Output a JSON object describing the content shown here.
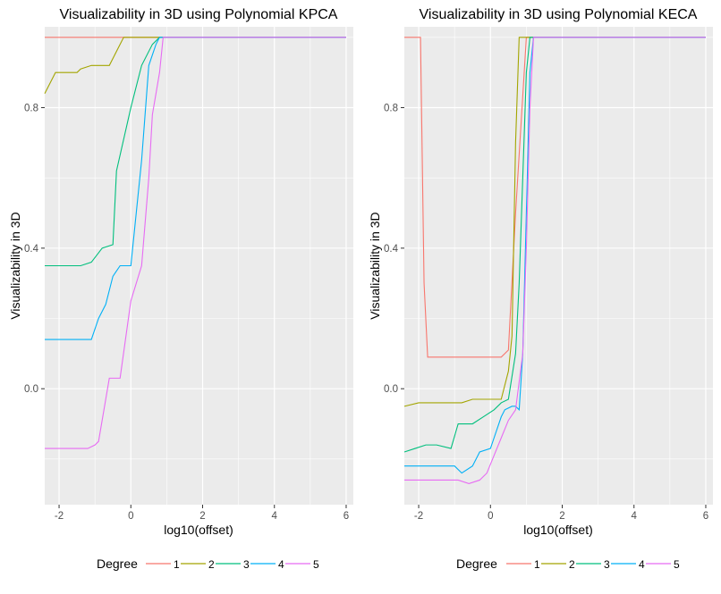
{
  "chart_data": [
    {
      "type": "line",
      "title": "Visualizability in 3D using Polynomial KPCA",
      "xlabel": "log10(offset)",
      "ylabel": "Visualizability in 3D",
      "xlim": [
        -2.4,
        6.2
      ],
      "ylim": [
        -0.33,
        1.03
      ],
      "xticks": [
        -2,
        0,
        2,
        4,
        6
      ],
      "yticks": [
        0.0,
        0.4,
        0.8
      ],
      "ytick_labels": [
        "0.0",
        "0.4",
        "0.8"
      ],
      "grid": true,
      "series": [
        {
          "name": "1",
          "color": "#F8766D",
          "x": [
            -2.4,
            6.0
          ],
          "y": [
            1.0,
            1.0
          ]
        },
        {
          "name": "2",
          "color": "#A3A500",
          "x": [
            -2.4,
            -2.1,
            -1.5,
            -1.4,
            -1.1,
            -0.6,
            -0.3,
            -0.2,
            0.4,
            6.0
          ],
          "y": [
            0.84,
            0.9,
            0.9,
            0.91,
            0.92,
            0.92,
            0.98,
            1.0,
            1.0,
            1.0
          ]
        },
        {
          "name": "3",
          "color": "#00BF7D",
          "x": [
            -2.4,
            -1.4,
            -1.1,
            -0.8,
            -0.5,
            -0.4,
            0.0,
            0.3,
            0.6,
            0.8,
            6.0
          ],
          "y": [
            0.35,
            0.35,
            0.36,
            0.4,
            0.41,
            0.62,
            0.8,
            0.92,
            0.98,
            1.0,
            1.0
          ]
        },
        {
          "name": "4",
          "color": "#00B0F6",
          "x": [
            -2.4,
            -1.1,
            -0.9,
            -0.7,
            -0.5,
            -0.3,
            0.0,
            0.3,
            0.5,
            0.7,
            0.8,
            6.0
          ],
          "y": [
            0.14,
            0.14,
            0.2,
            0.24,
            0.32,
            0.35,
            0.35,
            0.65,
            0.92,
            0.98,
            1.0,
            1.0
          ]
        },
        {
          "name": "5",
          "color": "#E76BF3",
          "x": [
            -2.4,
            -1.2,
            -1.0,
            -0.9,
            -0.6,
            -0.3,
            0.0,
            0.3,
            0.5,
            0.6,
            0.8,
            0.9,
            6.0
          ],
          "y": [
            -0.17,
            -0.17,
            -0.16,
            -0.15,
            0.03,
            0.03,
            0.25,
            0.35,
            0.6,
            0.78,
            0.9,
            1.0,
            1.0
          ]
        }
      ]
    },
    {
      "type": "line",
      "title": "Visualizability in 3D using Polynomial KECA",
      "xlabel": "log10(offset)",
      "ylabel": "Visualizability in 3D",
      "xlim": [
        -2.4,
        6.2
      ],
      "ylim": [
        -0.33,
        1.03
      ],
      "xticks": [
        -2,
        0,
        2,
        4,
        6
      ],
      "yticks": [
        0.0,
        0.4,
        0.8
      ],
      "ytick_labels": [
        "0.0",
        "0.4",
        "0.8"
      ],
      "grid": true,
      "series": [
        {
          "name": "1",
          "color": "#F8766D",
          "x": [
            -2.4,
            -1.95,
            -1.85,
            -1.75,
            0.3,
            0.5,
            0.7,
            1.0,
            6.0
          ],
          "y": [
            1.0,
            1.0,
            0.3,
            0.09,
            0.09,
            0.11,
            0.5,
            1.0,
            1.0
          ]
        },
        {
          "name": "2",
          "color": "#A3A500",
          "x": [
            -2.4,
            -2.0,
            -0.8,
            -0.5,
            0.3,
            0.5,
            0.6,
            0.7,
            0.8,
            1.2,
            6.0
          ],
          "y": [
            -0.05,
            -0.04,
            -0.04,
            -0.03,
            -0.03,
            0.05,
            0.15,
            0.7,
            1.0,
            1.0,
            1.0
          ]
        },
        {
          "name": "3",
          "color": "#00BF7D",
          "x": [
            -2.4,
            -2.1,
            -1.8,
            -1.5,
            -1.1,
            -0.9,
            -0.5,
            -0.2,
            0.1,
            0.3,
            0.5,
            0.7,
            0.8,
            0.9,
            1.0,
            1.1,
            6.0
          ],
          "y": [
            -0.18,
            -0.17,
            -0.16,
            -0.16,
            -0.17,
            -0.1,
            -0.1,
            -0.08,
            -0.06,
            -0.04,
            -0.03,
            0.1,
            0.3,
            0.6,
            0.9,
            1.0,
            1.0
          ]
        },
        {
          "name": "4",
          "color": "#00B0F6",
          "x": [
            -2.4,
            -1.5,
            -1.2,
            -1.0,
            -0.8,
            -0.5,
            -0.3,
            0.0,
            0.1,
            0.3,
            0.4,
            0.6,
            0.7,
            0.8,
            0.9,
            1.0,
            1.1,
            1.2,
            6.0
          ],
          "y": [
            -0.22,
            -0.22,
            -0.22,
            -0.22,
            -0.24,
            -0.22,
            -0.18,
            -0.17,
            -0.14,
            -0.08,
            -0.06,
            -0.05,
            -0.05,
            -0.06,
            0.1,
            0.5,
            0.9,
            1.0,
            1.0
          ]
        },
        {
          "name": "5",
          "color": "#E76BF3",
          "x": [
            -2.4,
            -1.6,
            -1.2,
            -0.9,
            -0.6,
            -0.3,
            -0.1,
            0.1,
            0.3,
            0.5,
            0.7,
            0.9,
            1.0,
            1.1,
            1.2,
            6.0
          ],
          "y": [
            -0.26,
            -0.26,
            -0.26,
            -0.26,
            -0.27,
            -0.26,
            -0.24,
            -0.19,
            -0.14,
            -0.09,
            -0.06,
            0.1,
            0.4,
            0.8,
            1.0,
            1.0
          ]
        }
      ]
    }
  ],
  "legends": [
    {
      "title": "Degree",
      "items": [
        "1",
        "2",
        "3",
        "4",
        "5"
      ]
    },
    {
      "title": "Degree",
      "items": [
        "1",
        "2",
        "3",
        "4",
        "5"
      ]
    }
  ]
}
